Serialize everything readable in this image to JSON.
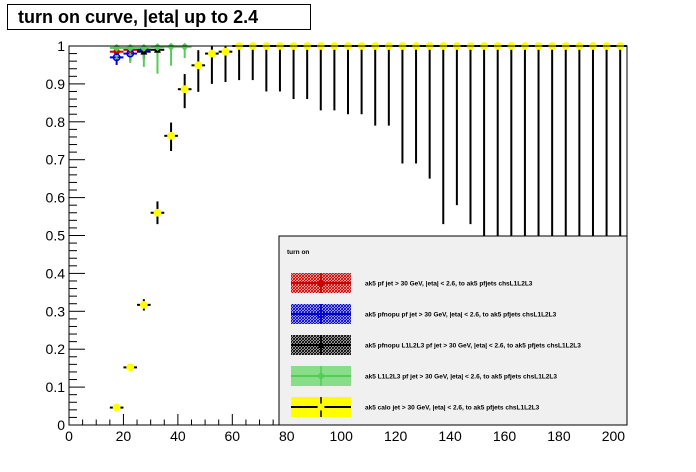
{
  "chart_data": {
    "type": "scatter",
    "title": "turn on curve, |eta| up to 2.4",
    "xlim": [
      0,
      205
    ],
    "ylim": [
      0,
      1
    ],
    "x_ticks": [
      0,
      20,
      40,
      60,
      80,
      100,
      120,
      140,
      160,
      180,
      200
    ],
    "y_ticks": [
      0,
      0.1,
      0.2,
      0.3,
      0.4,
      0.5,
      0.6,
      0.7,
      0.8,
      0.9,
      1
    ],
    "x_tick_labels": [
      "0",
      "20",
      "40",
      "60",
      "80",
      "100",
      "120",
      "140",
      "160",
      "180",
      "200"
    ],
    "y_tick_labels": [
      "0",
      "0.1",
      "0.2",
      "0.3",
      "0.4",
      "0.5",
      "0.6",
      "0.7",
      "0.8",
      "0.9",
      "1"
    ],
    "legend": {
      "title": "turn on",
      "position": "bottom-right",
      "entries": [
        {
          "label": "ak5 pf jet > 30 GeV, |eta| < 2.6, to ak5 pfjets chsL1L2L3",
          "color": "#cc0000",
          "marker": "circle-filled"
        },
        {
          "label": "ak5 pfnopu pf jet > 30 GeV, |eta| < 2.6, to ak5 pfjets chsL1L2L3",
          "color": "#0000cc",
          "marker": "circle-open"
        },
        {
          "label": "ak5 pfnopu L1L2L3 pf jet > 30 GeV, |eta| < 2.6, to ak5 pfjets chsL1L2L3",
          "color": "#000000",
          "marker": "triangle"
        },
        {
          "label": "ak5  L1L2L3 pf jet > 30 GeV, |eta| < 2.6, to ak5 pfjets chsL1L2L3",
          "color": "#55cc55",
          "marker": "diamond"
        },
        {
          "label": "ak5 calo jet > 30 GeV, |eta| < 2.6, to ak5 pfjets chsL1L2L3",
          "color": "#ffff00",
          "marker": "circle-filled"
        }
      ]
    },
    "series": [
      {
        "name": "ak5 pf jet > 30 GeV, |eta| < 2.6, to ak5 pfjets chsL1L2L3",
        "color": "#cc0000",
        "points": [
          {
            "x": 17.5,
            "y": 0.985,
            "elo": 0.01
          },
          {
            "x": 22.5,
            "y": 0.99,
            "elo": 0.01
          }
        ]
      },
      {
        "name": "ak5 pfnopu pf jet > 30 GeV, |eta| < 2.6, to ak5 pfjets chsL1L2L3",
        "color": "#0000cc",
        "points": [
          {
            "x": 17.5,
            "y": 0.97,
            "elo": 0.02
          },
          {
            "x": 22.5,
            "y": 0.98,
            "elo": 0.02
          },
          {
            "x": 27.5,
            "y": 0.99,
            "elo": 0.02
          }
        ]
      },
      {
        "name": "ak5 pfnopu L1L2L3 pf jet > 30 GeV, |eta| < 2.6, to ak5 pfjets chsL1L2L3",
        "color": "#000000",
        "points": [
          {
            "x": 27.5,
            "y": 0.985,
            "elo": 0.02
          },
          {
            "x": 32.5,
            "y": 0.99,
            "elo": 0.02
          }
        ]
      },
      {
        "name": "ak5  L1L2L3 pf jet > 30 GeV, |eta| < 2.6, to ak5 pfjets chsL1L2L3",
        "color": "#55cc55",
        "points": [
          {
            "x": 17.5,
            "y": 0.995,
            "elo": 0.03
          },
          {
            "x": 22.5,
            "y": 0.995,
            "elo": 0.04
          },
          {
            "x": 27.5,
            "y": 0.995,
            "elo": 0.05
          },
          {
            "x": 32.5,
            "y": 0.997,
            "elo": 0.07
          },
          {
            "x": 37.5,
            "y": 0.998,
            "elo": 0.05
          },
          {
            "x": 42.5,
            "y": 0.998,
            "elo": 0.03
          }
        ]
      },
      {
        "name": "ak5 calo jet > 30 GeV, |eta| < 2.6, to ak5 pfjets chsL1L2L3",
        "color": "#ffff00",
        "points": [
          {
            "x": 17.5,
            "y": 0.046,
            "elo": 0.005,
            "ehi": 0.005
          },
          {
            "x": 22.5,
            "y": 0.152,
            "elo": 0.006,
            "ehi": 0.006
          },
          {
            "x": 27.5,
            "y": 0.317,
            "elo": 0.015,
            "ehi": 0.015
          },
          {
            "x": 32.5,
            "y": 0.56,
            "elo": 0.03,
            "ehi": 0.03
          },
          {
            "x": 37.5,
            "y": 0.763,
            "elo": 0.04,
            "ehi": 0.035
          },
          {
            "x": 42.5,
            "y": 0.886,
            "elo": 0.05,
            "ehi": 0.04
          },
          {
            "x": 47.5,
            "y": 0.949,
            "elo": 0.07,
            "ehi": 0.04
          },
          {
            "x": 52.5,
            "y": 0.98,
            "elo": 0.08,
            "ehi": 0.02
          },
          {
            "x": 57.5,
            "y": 0.985,
            "elo": 0.08,
            "ehi": 0.015
          },
          {
            "x": 62.5,
            "y": 1.0,
            "elo": 0.09
          },
          {
            "x": 67.5,
            "y": 1.0,
            "elo": 0.09
          },
          {
            "x": 72.5,
            "y": 1.0,
            "elo": 0.12
          },
          {
            "x": 77.5,
            "y": 1.0,
            "elo": 0.12
          },
          {
            "x": 82.5,
            "y": 1.0,
            "elo": 0.14
          },
          {
            "x": 87.5,
            "y": 1.0,
            "elo": 0.14
          },
          {
            "x": 92.5,
            "y": 1.0,
            "elo": 0.17
          },
          {
            "x": 97.5,
            "y": 1.0,
            "elo": 0.17
          },
          {
            "x": 102.5,
            "y": 1.0,
            "elo": 0.18
          },
          {
            "x": 107.5,
            "y": 1.0,
            "elo": 0.18
          },
          {
            "x": 112.5,
            "y": 1.0,
            "elo": 0.21
          },
          {
            "x": 117.5,
            "y": 1.0,
            "elo": 0.21
          },
          {
            "x": 122.5,
            "y": 1.0,
            "elo": 0.31
          },
          {
            "x": 127.5,
            "y": 1.0,
            "elo": 0.31
          },
          {
            "x": 132.5,
            "y": 1.0,
            "elo": 0.35
          },
          {
            "x": 137.5,
            "y": 1.0,
            "elo": 0.47
          },
          {
            "x": 142.5,
            "y": 1.0,
            "elo": 0.42
          },
          {
            "x": 147.5,
            "y": 1.0,
            "elo": 0.47
          },
          {
            "x": 152.5,
            "y": 1.0,
            "elo": 0.55
          },
          {
            "x": 157.5,
            "y": 1.0,
            "elo": 0.55
          },
          {
            "x": 162.5,
            "y": 1.0,
            "elo": 0.55
          },
          {
            "x": 167.5,
            "y": 1.0,
            "elo": 0.55
          },
          {
            "x": 172.5,
            "y": 1.0,
            "elo": 0.55
          },
          {
            "x": 177.5,
            "y": 1.0,
            "elo": 0.55
          },
          {
            "x": 182.5,
            "y": 1.0,
            "elo": 0.55
          },
          {
            "x": 187.5,
            "y": 1.0,
            "elo": 0.55
          },
          {
            "x": 192.5,
            "y": 1.0,
            "elo": 0.55
          },
          {
            "x": 197.5,
            "y": 1.0,
            "elo": 0.55
          },
          {
            "x": 202.5,
            "y": 1.0,
            "elo": 0.55
          }
        ]
      }
    ]
  }
}
